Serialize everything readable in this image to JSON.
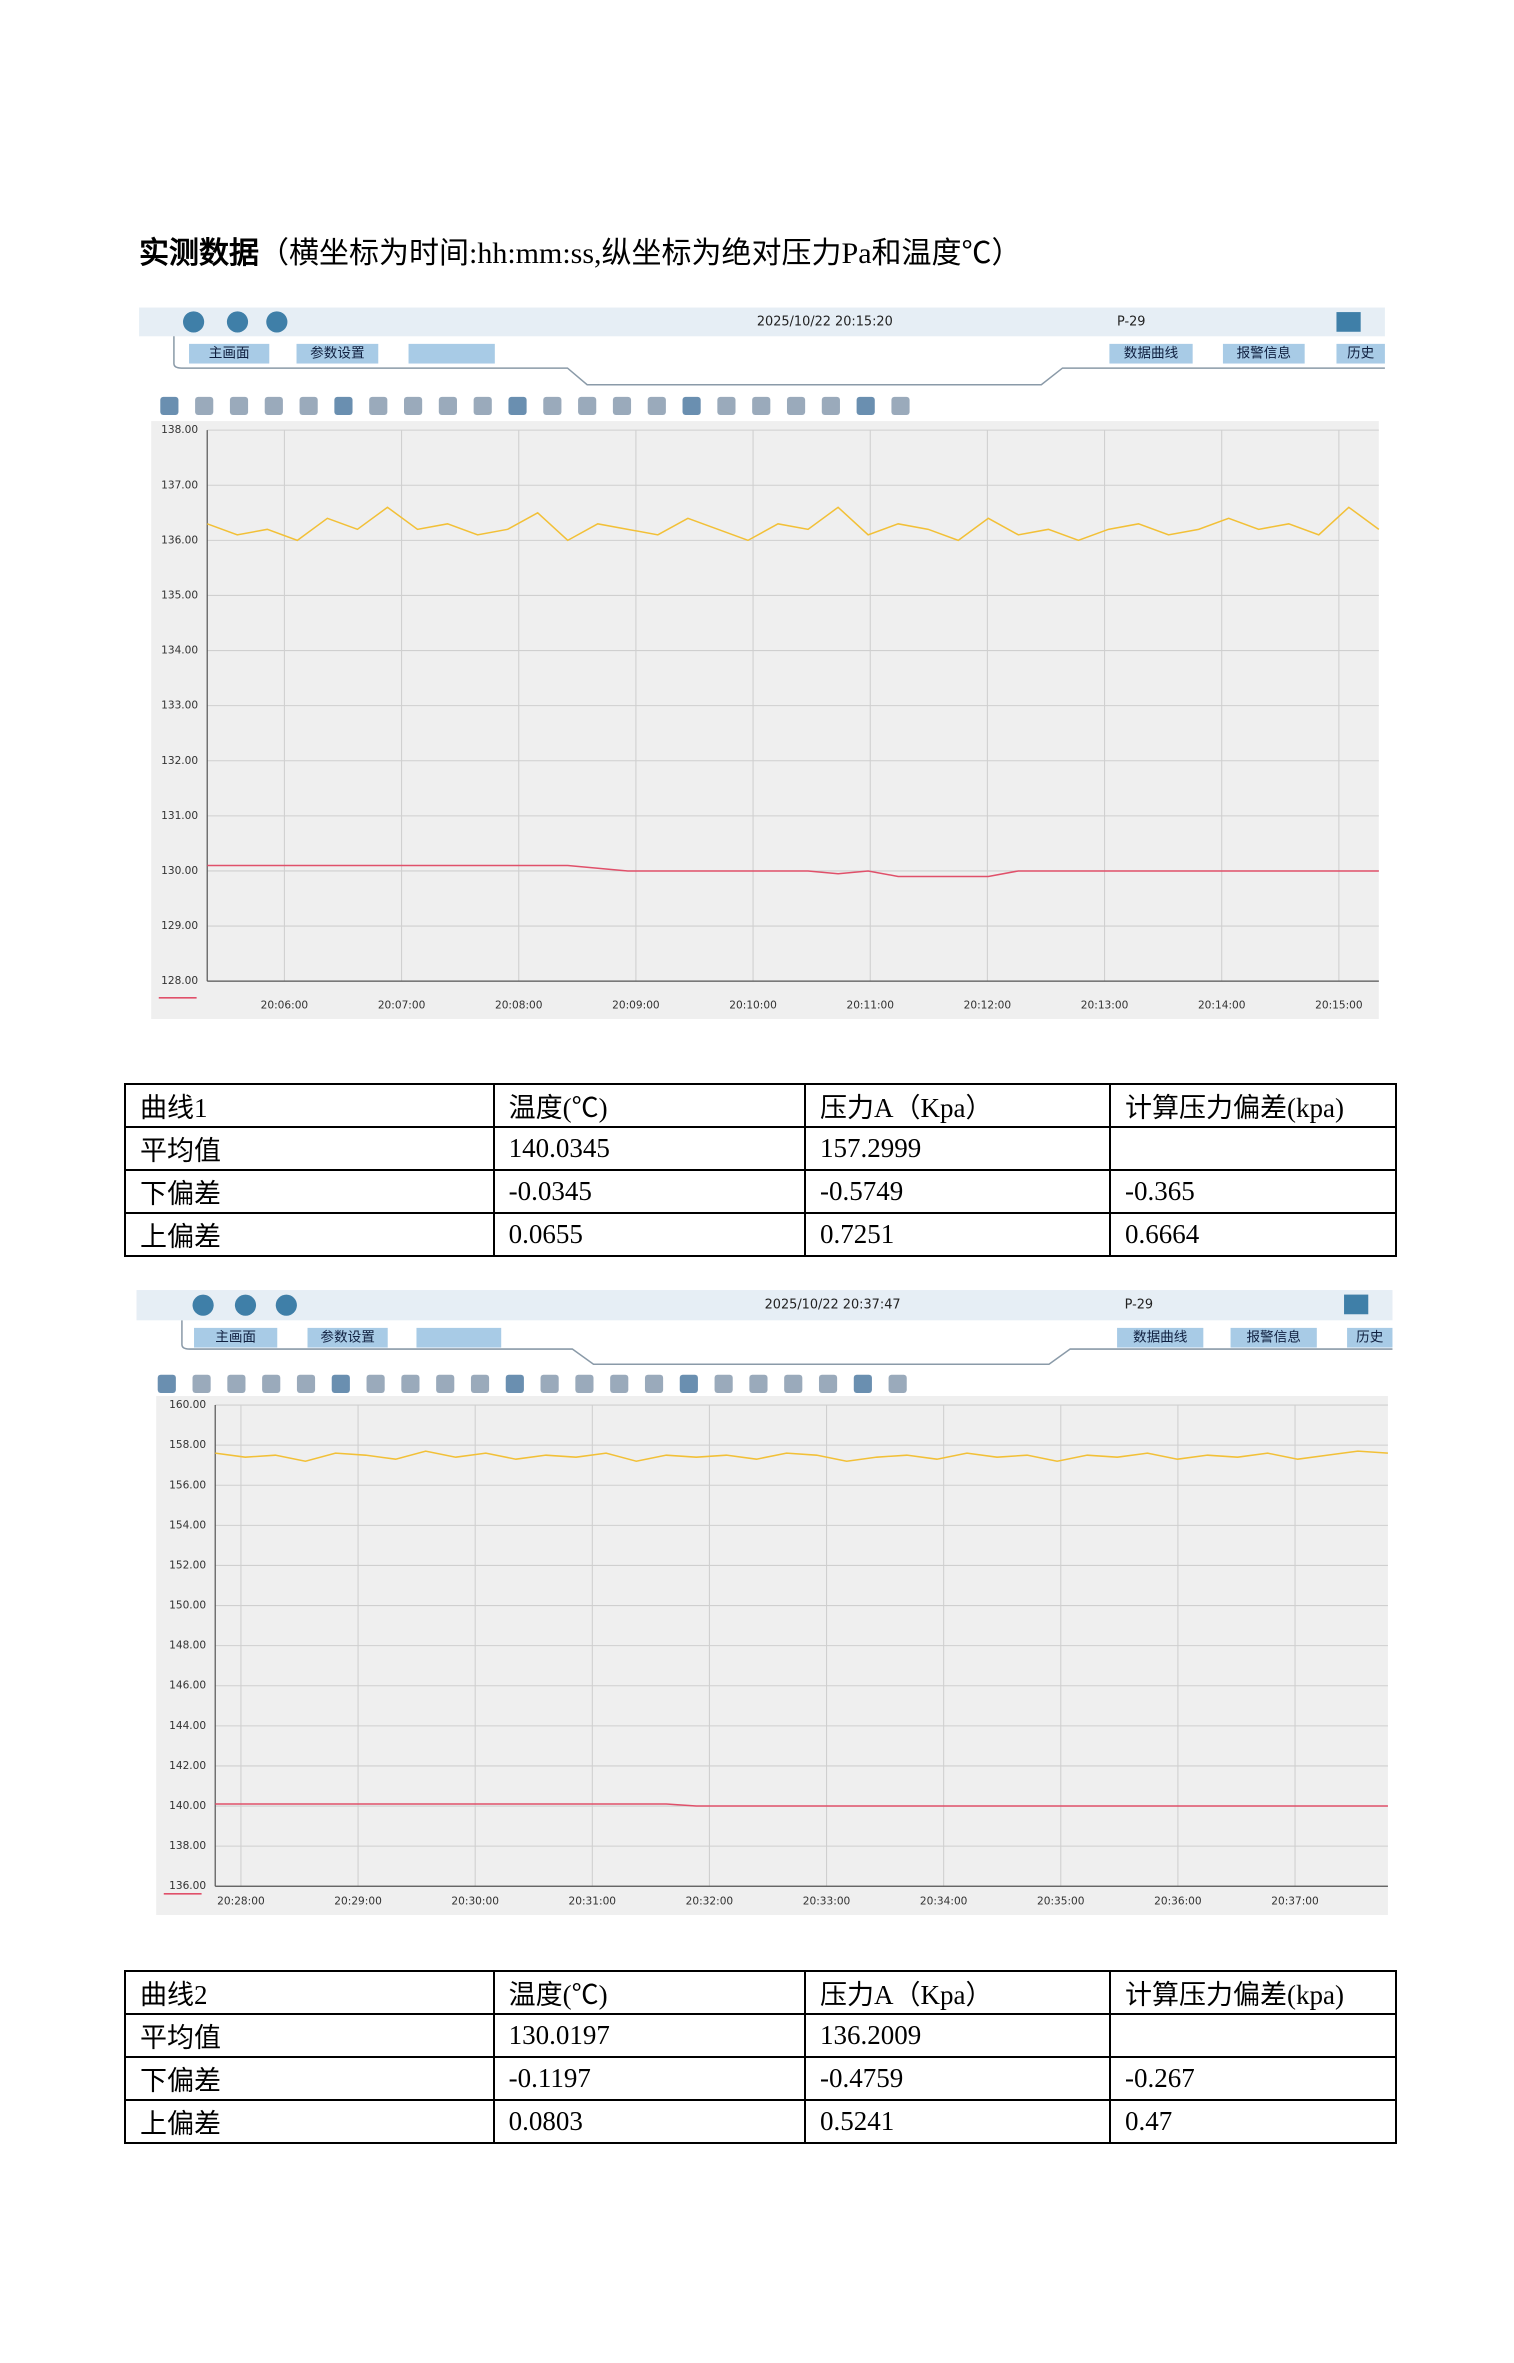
{
  "heading": {
    "bold": "实测数据",
    "note": "（横坐标为时间:hh:mm:ss,纵坐标为绝对压力Pa和温度℃）"
  },
  "screens": [
    {
      "toolbar": {
        "datetime": "2025/10/22 20:15:20",
        "station": "P-29",
        "tabs": [
          "主画面",
          "参数设置"
        ],
        "right_tabs": [
          "数据曲线",
          "报警信息",
          "历史"
        ]
      },
      "chart_data": {
        "type": "line",
        "ylim": [
          128,
          138
        ],
        "yticks": [
          {
            "value": 128,
            "label": "128.00"
          },
          {
            "value": 129,
            "label": "129.00"
          },
          {
            "value": 130,
            "label": "130.00"
          },
          {
            "value": 131,
            "label": "131.00"
          },
          {
            "value": 132,
            "label": "132.00"
          },
          {
            "value": 133,
            "label": "133.00"
          },
          {
            "value": 134,
            "label": "134.00"
          },
          {
            "value": 135,
            "label": "135.00"
          },
          {
            "value": 136,
            "label": "136.00"
          },
          {
            "value": 137,
            "label": "137.00"
          },
          {
            "value": 138,
            "label": "138.00"
          }
        ],
        "x_tick_labels": [
          "20:06:00",
          "20:07:00",
          "20:08:00",
          "20:09:00",
          "20:10:00",
          "20:11:00",
          "20:12:00",
          "20:13:00",
          "20:14:00",
          "20:15:00"
        ],
        "grid": true,
        "series": [
          {
            "color": "#f2c037",
            "values": [
              136.3,
              136.1,
              136.2,
              136.0,
              136.4,
              136.2,
              136.6,
              136.2,
              136.3,
              136.1,
              136.2,
              136.5,
              136.0,
              136.3,
              136.2,
              136.1,
              136.4,
              136.2,
              136.0,
              136.3,
              136.2,
              136.6,
              136.1,
              136.3,
              136.2,
              136.0,
              136.4,
              136.1,
              136.2,
              136.0,
              136.2,
              136.3,
              136.1,
              136.2,
              136.4,
              136.2,
              136.3,
              136.1,
              136.6,
              136.2
            ]
          },
          {
            "color": "#e0506a",
            "values": [
              130.1,
              130.1,
              130.1,
              130.1,
              130.1,
              130.1,
              130.1,
              130.1,
              130.1,
              130.1,
              130.1,
              130.1,
              130.1,
              130.05,
              130.0,
              130.0,
              130.0,
              130.0,
              130.0,
              130.0,
              130.0,
              129.95,
              130.0,
              129.9,
              129.9,
              129.9,
              129.9,
              130.0,
              130.0,
              130.0,
              130.0,
              130.0,
              130.0,
              130.0,
              130.0,
              130.0,
              130.0,
              130.0,
              130.0,
              130.0
            ]
          }
        ]
      }
    },
    {
      "toolbar": {
        "datetime": "2025/10/22 20:37:47",
        "station": "P-29",
        "tabs": [
          "主画面",
          "参数设置"
        ],
        "right_tabs": [
          "数据曲线",
          "报警信息",
          "历史"
        ]
      },
      "chart_data": {
        "type": "line",
        "ylim": [
          136,
          160
        ],
        "yticks": [
          {
            "value": 136,
            "label": "136.00"
          },
          {
            "value": 138,
            "label": "138.00"
          },
          {
            "value": 140,
            "label": "140.00"
          },
          {
            "value": 142,
            "label": "142.00"
          },
          {
            "value": 144,
            "label": "144.00"
          },
          {
            "value": 146,
            "label": "146.00"
          },
          {
            "value": 148,
            "label": "148.00"
          },
          {
            "value": 150,
            "label": "150.00"
          },
          {
            "value": 152,
            "label": "152.00"
          },
          {
            "value": 154,
            "label": "154.00"
          },
          {
            "value": 156,
            "label": "156.00"
          },
          {
            "value": 158,
            "label": "158.00"
          },
          {
            "value": 160,
            "label": "160.00"
          }
        ],
        "x_tick_labels": [
          "20:28:00",
          "20:29:00",
          "20:30:00",
          "20:31:00",
          "20:32:00",
          "20:33:00",
          "20:34:00",
          "20:35:00",
          "20:36:00",
          "20:37:00"
        ],
        "grid": true,
        "series": [
          {
            "color": "#f2c037",
            "values": [
              157.6,
              157.4,
              157.5,
              157.2,
              157.6,
              157.5,
              157.3,
              157.7,
              157.4,
              157.6,
              157.3,
              157.5,
              157.4,
              157.6,
              157.2,
              157.5,
              157.4,
              157.5,
              157.3,
              157.6,
              157.5,
              157.2,
              157.4,
              157.5,
              157.3,
              157.6,
              157.4,
              157.5,
              157.2,
              157.5,
              157.4,
              157.6,
              157.3,
              157.5,
              157.4,
              157.6,
              157.3,
              157.5,
              157.7,
              157.6
            ]
          },
          {
            "color": "#e0506a",
            "values": [
              140.1,
              140.1,
              140.1,
              140.1,
              140.1,
              140.1,
              140.1,
              140.1,
              140.1,
              140.1,
              140.1,
              140.1,
              140.1,
              140.1,
              140.1,
              140.1,
              140.0,
              140.0,
              140.0,
              140.0,
              140.0,
              140.0,
              140.0,
              140.0,
              140.0,
              140.0,
              140.0,
              140.0,
              140.0,
              140.0,
              140.0,
              140.0,
              140.0,
              140.0,
              140.0,
              140.0,
              140.0,
              140.0,
              140.0,
              140.0
            ]
          }
        ]
      }
    }
  ],
  "tables": [
    {
      "header": [
        "曲线1",
        "温度(℃)",
        "压力A（Kpa）",
        "计算压力偏差(kpa)"
      ],
      "rows": [
        [
          "平均值",
          "140.0345",
          "157.2999"
        ],
        [
          "下偏差",
          "-0.0345",
          "-0.5749",
          "-0.365"
        ],
        [
          "上偏差",
          "0.0655",
          "0.7251",
          "0.6664"
        ]
      ]
    },
    {
      "header": [
        "曲线2",
        "温度(℃)",
        "压力A（Kpa）",
        "计算压力偏差(kpa)"
      ],
      "rows": [
        [
          "平均值",
          "130.0197",
          "136.2009"
        ],
        [
          "下偏差",
          "-0.1197",
          "-0.4759",
          "-0.267"
        ],
        [
          "上偏差",
          "0.0803",
          "0.5241",
          "0.47"
        ]
      ]
    }
  ]
}
